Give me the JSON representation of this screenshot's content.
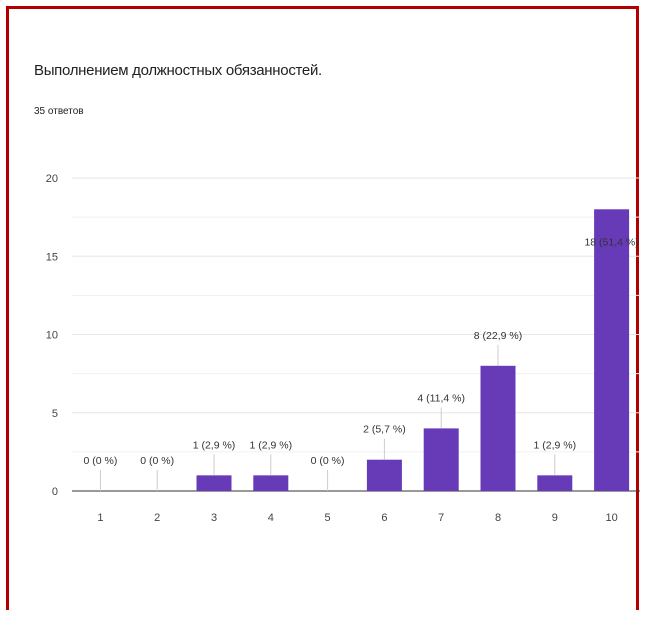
{
  "chart_data": {
    "type": "bar",
    "title": "Выполнением должностных обязанностей.",
    "subtitle": "35 ответов",
    "categories": [
      "1",
      "2",
      "3",
      "4",
      "5",
      "6",
      "7",
      "8",
      "9",
      "10"
    ],
    "values": [
      0,
      0,
      1,
      1,
      0,
      2,
      4,
      8,
      1,
      18
    ],
    "data_labels": [
      "0 (0 %)",
      "0 (0 %)",
      "1 (2,9 %)",
      "1 (2,9 %)",
      "0 (0 %)",
      "2 (5,7 %)",
      "4 (11,4 %)",
      "8 (22,9 %)",
      "1 (2,9 %)",
      "18 (51,4 %)"
    ],
    "y_ticks": [
      "0",
      "5",
      "10",
      "15",
      "20"
    ],
    "ylim": [
      0,
      20
    ],
    "grid": true,
    "colors": {
      "bar": "#673ab7",
      "frame": "#b00000",
      "grid": "#e6e6e6"
    }
  }
}
